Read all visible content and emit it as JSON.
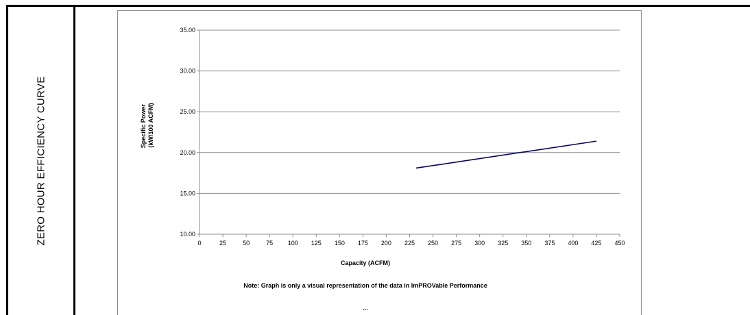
{
  "side_label": "ZERO HOUR EFFICIENCY CURVE",
  "note": "Note:  Graph is only a visual representation of the data in ImPROVable Performance",
  "ellipsis": "...",
  "chart_data": {
    "type": "line",
    "title": "",
    "xlabel": "Capacity (ACFM)",
    "ylabel_lines": [
      "Specific Power",
      "(kW/100 ACFM)"
    ],
    "xlim": [
      0,
      450
    ],
    "ylim": [
      10,
      35
    ],
    "x_ticks": [
      "0",
      "25",
      "50",
      "75",
      "100",
      "125",
      "150",
      "175",
      "200",
      "225",
      "250",
      "275",
      "300",
      "325",
      "350",
      "375",
      "400",
      "425",
      "450"
    ],
    "y_ticks": [
      "10.00",
      "15.00",
      "20.00",
      "25.00",
      "30.00",
      "35.00"
    ],
    "grid": "horizontal",
    "series": [
      {
        "x": [
          232,
          425
        ],
        "y": [
          18.1,
          21.4
        ],
        "color": "#000080"
      }
    ]
  }
}
